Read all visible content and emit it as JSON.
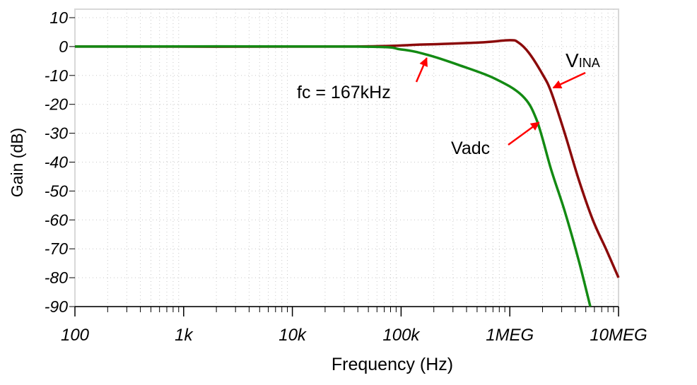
{
  "chart_data": {
    "type": "line",
    "xlabel": "Frequency (Hz)",
    "ylabel": "Gain (dB)",
    "xscale": "log",
    "xlim": [
      100,
      10000000
    ],
    "ylim": [
      -90,
      10
    ],
    "grid": true,
    "x_ticks": [
      {
        "v": 100,
        "label": "100"
      },
      {
        "v": 1000,
        "label": "1k"
      },
      {
        "v": 10000,
        "label": "10k"
      },
      {
        "v": 100000,
        "label": "100k"
      },
      {
        "v": 1000000,
        "label": "1MEG"
      },
      {
        "v": 10000000,
        "label": "10MEG"
      }
    ],
    "y_ticks": [
      10,
      0,
      -10,
      -20,
      -30,
      -40,
      -50,
      -60,
      -70,
      -80,
      -90
    ],
    "series": [
      {
        "name": "VINA",
        "color": "#8b0a0a",
        "x": [
          100,
          30000,
          160000,
          530000,
          1000000,
          1200000,
          1500000,
          2000000,
          2400000,
          3200000,
          4300000,
          5800000,
          7800000,
          10000000
        ],
        "y": [
          0,
          0,
          0.7,
          1.4,
          2.2,
          1.4,
          -2.2,
          -9.6,
          -15.7,
          -30,
          -46,
          -60,
          -70.7,
          -80
        ]
      },
      {
        "name": "Vadc",
        "color": "#138a13",
        "x": [
          100,
          36000,
          100000,
          180000,
          340000,
          720000,
          1300000,
          1770000,
          2400000,
          3200000,
          4300000,
          5500000
        ],
        "y": [
          0,
          0,
          -1,
          -3,
          -6.4,
          -11,
          -17,
          -25.5,
          -42.6,
          -57,
          -74,
          -90
        ]
      }
    ],
    "annotations": [
      {
        "text": "fc = 167kHz",
        "x": 167000,
        "y": -3,
        "arrow_color": "#ff0000"
      },
      {
        "text": "Vadc",
        "series": "Vadc",
        "x": 1800000,
        "y": -26,
        "arrow_color": "#ff0000"
      },
      {
        "text_main": "V",
        "text_sub": "INA",
        "series": "VINA",
        "x": 2400000,
        "y": -14,
        "arrow_color": "#ff0000"
      }
    ]
  }
}
